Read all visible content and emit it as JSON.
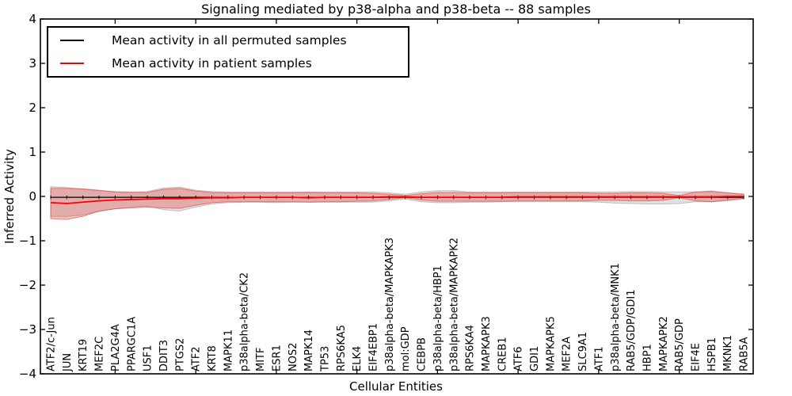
{
  "chart_data": {
    "type": "line",
    "title": "Signaling mediated by p38-alpha and p38-beta -- 88 samples",
    "xlabel": "Cellular Entities",
    "ylabel": "Inferred Activity",
    "ylim": [
      -4,
      4
    ],
    "yticks": [
      -4,
      -3,
      -2,
      -1,
      0,
      1,
      2,
      3,
      4
    ],
    "xticks_numeric": [
      5,
      10,
      15,
      20,
      25,
      30,
      35,
      40
    ],
    "grid": false,
    "legend_position": "upper left",
    "categories": [
      "ATF2/c-Jun",
      "JUN",
      "KRT19",
      "MEF2C",
      "PLA2G4A",
      "PPARGC1A",
      "USF1",
      "DDIT3",
      "PTGS2",
      "ATF2",
      "KRT8",
      "MAPK11",
      "p38alpha-beta/CK2",
      "MITF",
      "ESR1",
      "NOS2",
      "MAPK14",
      "TP53",
      "RPS6KA5",
      "ELK4",
      "EIF4EBP1",
      "p38alpha-beta/MAPKAPK3",
      "mol:GDP",
      "CEBPB",
      "p38alpha-beta/HBP1",
      "p38alpha-beta/MAPKAPK2",
      "RPS6KA4",
      "MAPKAPK3",
      "CREB1",
      "ATF6",
      "GDI1",
      "MAPKAPK5",
      "MEF2A",
      "SLC9A1",
      "ATF1",
      "p38alpha-beta/MNK1",
      "RAB5/GDP/GDI1",
      "HBP1",
      "MAPKAPK2",
      "RAB5/GDP",
      "EIF4E",
      "HSPB1",
      "MKNK1",
      "RAB5A"
    ],
    "series": [
      {
        "name": "Mean activity in all permuted samples",
        "color": "#000000",
        "values": [
          -0.02,
          -0.02,
          -0.02,
          -0.02,
          -0.02,
          -0.02,
          -0.02,
          -0.02,
          -0.02,
          -0.02,
          -0.02,
          -0.02,
          -0.02,
          -0.02,
          -0.02,
          -0.02,
          -0.02,
          -0.02,
          -0.02,
          -0.02,
          -0.02,
          -0.02,
          -0.02,
          -0.02,
          -0.02,
          -0.02,
          -0.02,
          -0.02,
          -0.02,
          -0.02,
          -0.02,
          -0.02,
          -0.02,
          -0.02,
          -0.02,
          -0.02,
          -0.02,
          -0.02,
          -0.02,
          -0.02,
          -0.02,
          -0.02,
          -0.02,
          -0.02
        ]
      },
      {
        "name": "Mean activity in patient samples",
        "color": "#ff0000",
        "values": [
          -0.14,
          -0.16,
          -0.13,
          -0.1,
          -0.08,
          -0.07,
          -0.06,
          -0.05,
          -0.05,
          -0.04,
          -0.03,
          -0.03,
          -0.02,
          -0.02,
          -0.02,
          -0.02,
          -0.03,
          -0.02,
          -0.02,
          -0.02,
          -0.02,
          -0.01,
          -0.01,
          -0.02,
          -0.02,
          -0.02,
          -0.02,
          -0.02,
          -0.02,
          -0.01,
          -0.01,
          -0.01,
          -0.01,
          -0.01,
          -0.01,
          -0.01,
          -0.01,
          -0.01,
          -0.01,
          -0.01,
          -0.01,
          -0.01,
          0.0,
          0.0
        ]
      }
    ],
    "bands": [
      {
        "name": "permuted-samples-range",
        "fill": "rgba(120,120,120,0.22)",
        "edge": "rgba(130,130,130,0.45)",
        "upper": [
          0.22,
          0.2,
          0.16,
          0.13,
          0.11,
          0.1,
          0.11,
          0.19,
          0.21,
          0.14,
          0.11,
          0.1,
          0.1,
          0.1,
          0.1,
          0.1,
          0.1,
          0.1,
          0.1,
          0.1,
          0.1,
          0.08,
          0.05,
          0.1,
          0.13,
          0.13,
          0.1,
          0.1,
          0.1,
          0.1,
          0.1,
          0.1,
          0.1,
          0.1,
          0.1,
          0.1,
          0.11,
          0.11,
          0.1,
          0.1,
          0.1,
          0.1,
          0.08,
          0.06
        ],
        "lower": [
          -0.45,
          -0.45,
          -0.42,
          -0.34,
          -0.28,
          -0.24,
          -0.22,
          -0.3,
          -0.33,
          -0.24,
          -0.17,
          -0.14,
          -0.13,
          -0.13,
          -0.14,
          -0.13,
          -0.13,
          -0.13,
          -0.13,
          -0.13,
          -0.13,
          -0.1,
          -0.06,
          -0.12,
          -0.14,
          -0.14,
          -0.13,
          -0.13,
          -0.12,
          -0.12,
          -0.12,
          -0.12,
          -0.12,
          -0.12,
          -0.13,
          -0.15,
          -0.16,
          -0.17,
          -0.17,
          -0.16,
          -0.12,
          -0.12,
          -0.1,
          -0.06
        ]
      },
      {
        "name": "patient-samples-range",
        "fill": "rgba(235,60,60,0.33)",
        "edge": "rgba(230,50,50,0.55)",
        "upper": [
          0.18,
          0.18,
          0.17,
          0.14,
          0.1,
          0.09,
          0.09,
          0.16,
          0.18,
          0.12,
          0.09,
          0.08,
          0.08,
          0.08,
          0.08,
          0.08,
          0.09,
          0.08,
          0.08,
          0.08,
          0.07,
          0.05,
          0.02,
          0.06,
          0.09,
          0.09,
          0.08,
          0.08,
          0.08,
          0.08,
          0.08,
          0.08,
          0.08,
          0.08,
          0.07,
          0.07,
          0.08,
          0.08,
          0.07,
          0.02,
          0.1,
          0.12,
          0.08,
          0.04
        ],
        "lower": [
          -0.5,
          -0.52,
          -0.45,
          -0.33,
          -0.28,
          -0.26,
          -0.24,
          -0.26,
          -0.27,
          -0.2,
          -0.14,
          -0.12,
          -0.12,
          -0.12,
          -0.12,
          -0.12,
          -0.13,
          -0.12,
          -0.12,
          -0.11,
          -0.1,
          -0.07,
          -0.03,
          -0.08,
          -0.11,
          -0.11,
          -0.11,
          -0.11,
          -0.11,
          -0.1,
          -0.1,
          -0.1,
          -0.1,
          -0.1,
          -0.09,
          -0.09,
          -0.1,
          -0.1,
          -0.09,
          -0.03,
          -0.1,
          -0.12,
          -0.08,
          -0.04
        ]
      }
    ]
  }
}
